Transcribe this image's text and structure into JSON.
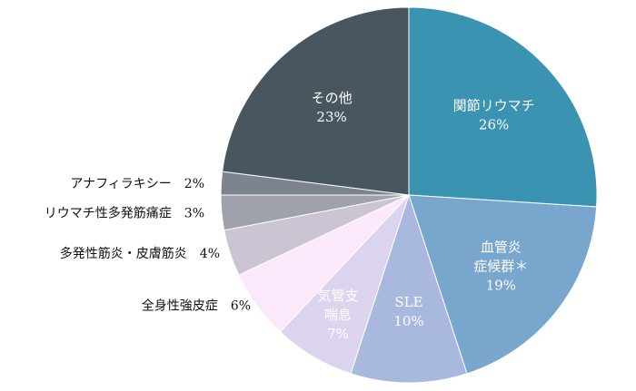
{
  "chart_data": {
    "type": "pie",
    "start_angle_deg": 0,
    "direction": "clockwise",
    "slices": [
      {
        "label_lines": [
          "関節リウマチ"
        ],
        "value_text": "26%",
        "value": 26,
        "color": "#3a93b0",
        "text_color": "#ffffff",
        "label_position": "inside"
      },
      {
        "label_lines": [
          "血管炎",
          "症候群＊"
        ],
        "value_text": "19%",
        "value": 19,
        "color": "#79a6cd",
        "text_color": "#ffffff",
        "label_position": "inside"
      },
      {
        "label_lines": [
          "SLE"
        ],
        "value_text": "10%",
        "value": 10,
        "color": "#a9b8de",
        "text_color": "#ffffff",
        "label_position": "inside"
      },
      {
        "label_lines": [
          "気管支",
          "喘息"
        ],
        "value_text": "7%",
        "value": 7,
        "color": "#dcd3ee",
        "text_color": "#ffffff",
        "label_position": "inside"
      },
      {
        "label_lines": [
          "全身性強皮症"
        ],
        "value_text": "6%",
        "value": 6,
        "color": "#fbe8fb",
        "text_color": "#111111",
        "label_position": "outside"
      },
      {
        "label_lines": [
          "多発性筋炎・皮膚筋炎"
        ],
        "value_text": "4%",
        "value": 4,
        "color": "#cbc5d3",
        "text_color": "#111111",
        "label_position": "outside"
      },
      {
        "label_lines": [
          "リウマチ性多発筋痛症"
        ],
        "value_text": "3%",
        "value": 3,
        "color": "#a0a2ab",
        "text_color": "#111111",
        "label_position": "outside"
      },
      {
        "label_lines": [
          "アナフィラキシー"
        ],
        "value_text": "2%",
        "value": 2,
        "color": "#7c858d",
        "text_color": "#111111",
        "label_position": "outside"
      },
      {
        "label_lines": [
          "その他"
        ],
        "value_text": "23%",
        "value": 23,
        "color": "#48575f",
        "text_color": "#ffffff",
        "label_position": "inside"
      }
    ]
  }
}
